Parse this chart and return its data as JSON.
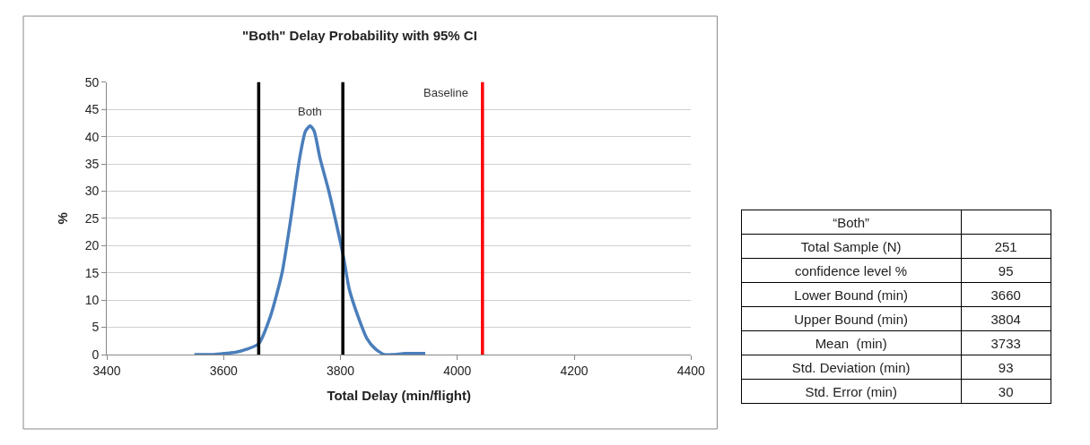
{
  "chart_data": [
    {
      "type": "line",
      "title": "\"Both\" Delay Probability with 95% CI",
      "xlabel": "Total Delay (min/flight)",
      "ylabel": "%",
      "series": [
        {
          "name": "Both",
          "color": "#4a7ebb",
          "x": [
            3550,
            3580,
            3600,
            3620,
            3640,
            3660,
            3680,
            3700,
            3715,
            3730,
            3740,
            3748,
            3755,
            3765,
            3780,
            3795,
            3805,
            3815,
            3830,
            3845,
            3860,
            3875,
            3890,
            3910,
            3930,
            3945
          ],
          "values": [
            0,
            0,
            0.2,
            0.4,
            1,
            2,
            7,
            15,
            25,
            36,
            41,
            42,
            41,
            36,
            30,
            23,
            18,
            12,
            7,
            3,
            1,
            0,
            0,
            0.2,
            0.2,
            0.2
          ]
        }
      ],
      "ref_lines": [
        {
          "axis": "x",
          "value": 3660,
          "color": "#000000"
        },
        {
          "axis": "x",
          "value": 3804,
          "color": "#000000"
        },
        {
          "axis": "x",
          "value": 4043,
          "label": "Baseline",
          "color": "#ff0000"
        }
      ],
      "xlim": [
        3400,
        4400
      ],
      "xticks": [
        3400,
        3600,
        3800,
        4000,
        4200,
        4400
      ],
      "ylim": [
        0,
        50
      ],
      "yticks": [
        0,
        5,
        10,
        15,
        20,
        25,
        30,
        35,
        40,
        45,
        50
      ],
      "grid": "y",
      "legend": false,
      "marker": "none",
      "line_style": "solid"
    },
    {
      "type": "other",
      "title": "“Both”",
      "categories": [
        "Total Sample (N)",
        "confidence level %",
        "Lower Bound (min)",
        "Upper Bound (min)",
        "Mean  (min)",
        "Std. Deviation (min)",
        "Std. Error (min)"
      ],
      "values": [
        251,
        95,
        3660,
        3804,
        3733,
        93,
        30
      ],
      "data_labels": true
    }
  ]
}
